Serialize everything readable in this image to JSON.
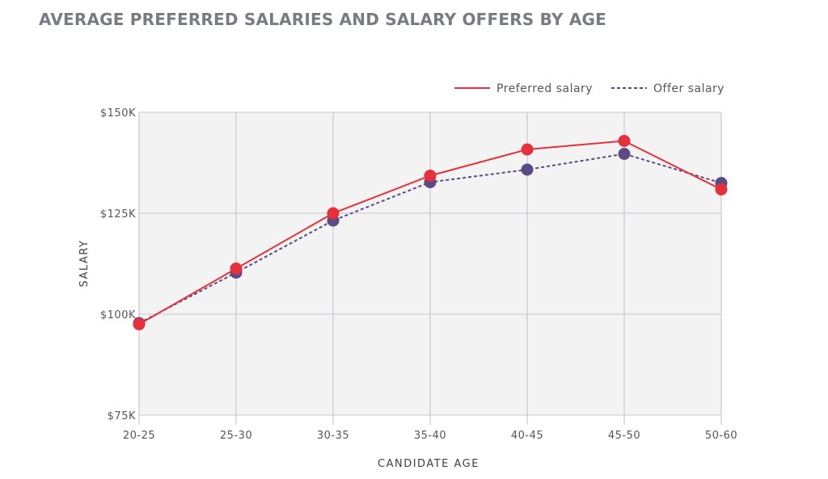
{
  "chart_data": {
    "type": "line",
    "title": "AVERAGE PREFERRED SALARIES AND SALARY OFFERS BY AGE",
    "xlabel": "CANDIDATE AGE",
    "ylabel": "SALARY",
    "categories": [
      "20-25",
      "25-30",
      "30-35",
      "35-40",
      "40-45",
      "45-50",
      "50-60"
    ],
    "y_ticks": [
      {
        "value": 75000,
        "label": "$75K"
      },
      {
        "value": 100000,
        "label": "$100K"
      },
      {
        "value": 125000,
        "label": "$125K"
      },
      {
        "value": 150000,
        "label": "$150K"
      }
    ],
    "ylim": [
      75000,
      150000
    ],
    "grid": true,
    "legend_position": "top-right",
    "series": [
      {
        "name": "Preferred salary",
        "color": "#e8303a",
        "line_style": "solid",
        "values": [
          97500,
          111300,
          125000,
          134300,
          140800,
          142900,
          130900
        ]
      },
      {
        "name": "Offer salary",
        "color": "#5b4a86",
        "line_style": "dashed",
        "values": [
          97800,
          110300,
          123200,
          132700,
          135800,
          139700,
          132500
        ]
      }
    ]
  }
}
